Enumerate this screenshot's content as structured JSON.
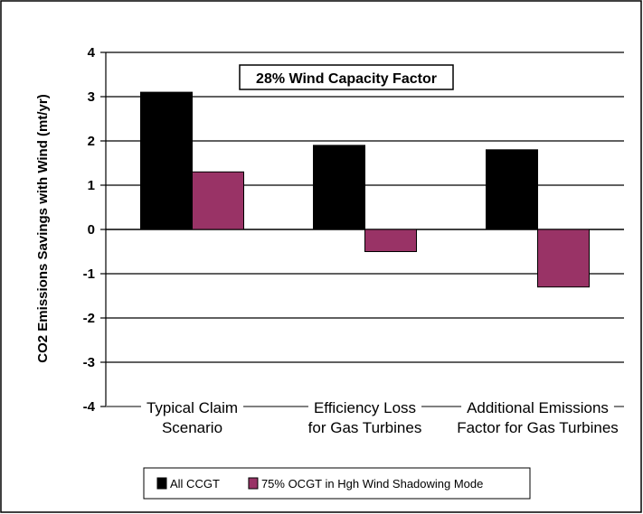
{
  "chart_data": {
    "type": "bar",
    "ylabel": "CO2 Emissions Savings with Wind (mt/yr)",
    "xlabel": "",
    "ylim": [
      -4,
      4
    ],
    "yticks": [
      4,
      3,
      2,
      1,
      0,
      -1,
      -2,
      -3,
      -4
    ],
    "grid": true,
    "annotation": "28% Wind Capacity Factor",
    "categories": [
      [
        "Typical Claim",
        "Scenario"
      ],
      [
        "Efficiency Loss",
        "for Gas Turbines"
      ],
      [
        "Additional Emissions",
        "Factor for Gas Turbines"
      ]
    ],
    "series": [
      {
        "name": "All CCGT",
        "color": "#000000",
        "values": [
          3.1,
          1.9,
          1.8
        ]
      },
      {
        "name": "75% OCGT in Hgh Wind Shadowing Mode",
        "color": "#993366",
        "values": [
          1.3,
          -0.5,
          -1.3
        ]
      }
    ],
    "legend_position": "bottom"
  }
}
